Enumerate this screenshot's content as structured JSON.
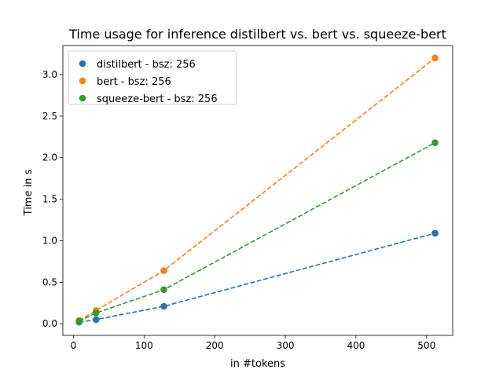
{
  "chart_data": {
    "type": "scatter",
    "title": "Time usage for inference distilbert vs. bert vs. squeeze-bert",
    "xlabel": "in #tokens",
    "ylabel": "Time in s",
    "xlim": [
      -15,
      537
    ],
    "ylim": [
      -0.14,
      3.35
    ],
    "xticks": [
      0,
      100,
      200,
      300,
      400,
      500
    ],
    "yticks": [
      0.0,
      0.5,
      1.0,
      1.5,
      2.0,
      2.5,
      3.0
    ],
    "xtick_labels": [
      "0",
      "100",
      "200",
      "300",
      "400",
      "500"
    ],
    "ytick_labels": [
      "0.0",
      "0.5",
      "1.0",
      "1.5",
      "2.0",
      "2.5",
      "3.0"
    ],
    "grid": false,
    "legend_position": "upper-left",
    "x": [
      8,
      32,
      128,
      512
    ],
    "series": [
      {
        "name": "distilbert - bsz: 256",
        "color": "#1f77b4",
        "values": [
          0.02,
          0.05,
          0.21,
          1.09
        ]
      },
      {
        "name": "bert - bsz: 256",
        "color": "#ff7f0e",
        "values": [
          0.04,
          0.16,
          0.64,
          3.2
        ]
      },
      {
        "name": "squeeze-bert - bsz: 256",
        "color": "#2ca02c",
        "values": [
          0.03,
          0.13,
          0.41,
          2.18
        ]
      }
    ]
  }
}
